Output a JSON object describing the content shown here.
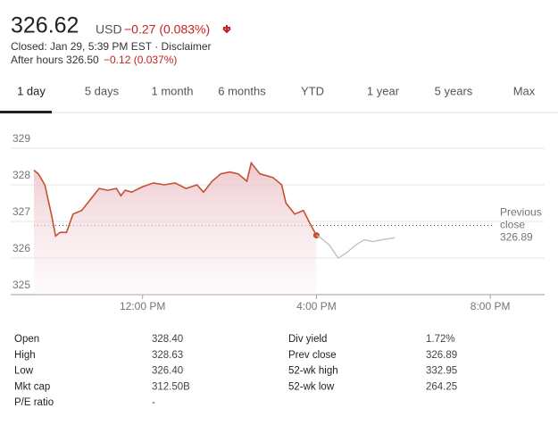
{
  "header": {
    "price": "326.62",
    "currency": "USD",
    "change": "−0.27 (0.083%)",
    "closed": "Closed: Jan 29, 5:39 PM EST · Disclaimer",
    "after_hours": "After hours 326.50",
    "after_hours_change": "−0.12 (0.037%)"
  },
  "tabs": [
    "1 day",
    "5 days",
    "1 month",
    "6 months",
    "YTD",
    "1 year",
    "5 years",
    "Max"
  ],
  "chart_data": {
    "type": "line",
    "xlim": [
      9.5,
      21.25
    ],
    "xticks": [
      {
        "value": 12,
        "label": "12:00 PM"
      },
      {
        "value": 16,
        "label": "4:00 PM"
      },
      {
        "value": 20,
        "label": "8:00 PM"
      }
    ],
    "ylim": [
      325,
      329
    ],
    "yticks": [
      325,
      326,
      327,
      328,
      329
    ],
    "grid": true,
    "reference_line": {
      "label": "Previous close",
      "value": 326.89
    },
    "series": [
      {
        "color": "#c5502f",
        "x": [
          9.5,
          9.6,
          9.75,
          9.9,
          10.0,
          10.1,
          10.25,
          10.4,
          10.6,
          10.8,
          11.0,
          11.2,
          11.4,
          11.5,
          11.6,
          11.75,
          12.0,
          12.25,
          12.5,
          12.75,
          13.0,
          13.25,
          13.4,
          13.6,
          13.8,
          14.0,
          14.2,
          14.4,
          14.5,
          14.7,
          15.0,
          15.2,
          15.3,
          15.5,
          15.7,
          15.85,
          16.0
        ],
        "values": [
          328.4,
          328.3,
          328.0,
          327.2,
          326.6,
          326.7,
          326.7,
          327.2,
          327.3,
          327.6,
          327.9,
          327.85,
          327.9,
          327.7,
          327.85,
          327.8,
          327.95,
          328.05,
          328.0,
          328.05,
          327.9,
          328.0,
          327.8,
          328.1,
          328.3,
          328.35,
          328.3,
          328.1,
          328.6,
          328.3,
          328.2,
          328.0,
          327.5,
          327.2,
          327.3,
          326.95,
          326.62
        ]
      },
      {
        "color": "#bdbdbd",
        "x": [
          16.0,
          16.1,
          16.3,
          16.5,
          16.7,
          16.9,
          17.1,
          17.3,
          17.5,
          17.8
        ],
        "values": [
          326.62,
          326.55,
          326.35,
          326.0,
          326.15,
          326.35,
          326.5,
          326.45,
          326.5,
          326.55
        ]
      }
    ]
  },
  "stats": {
    "rows": [
      [
        "Open",
        "328.40",
        "Div yield",
        "1.72%"
      ],
      [
        "High",
        "328.63",
        "Prev close",
        "326.89"
      ],
      [
        "Low",
        "326.40",
        "52-wk high",
        "332.95"
      ],
      [
        "Mkt cap",
        "312.50B",
        "52-wk low",
        "264.25"
      ],
      [
        "P/E ratio",
        "-"
      ]
    ]
  }
}
